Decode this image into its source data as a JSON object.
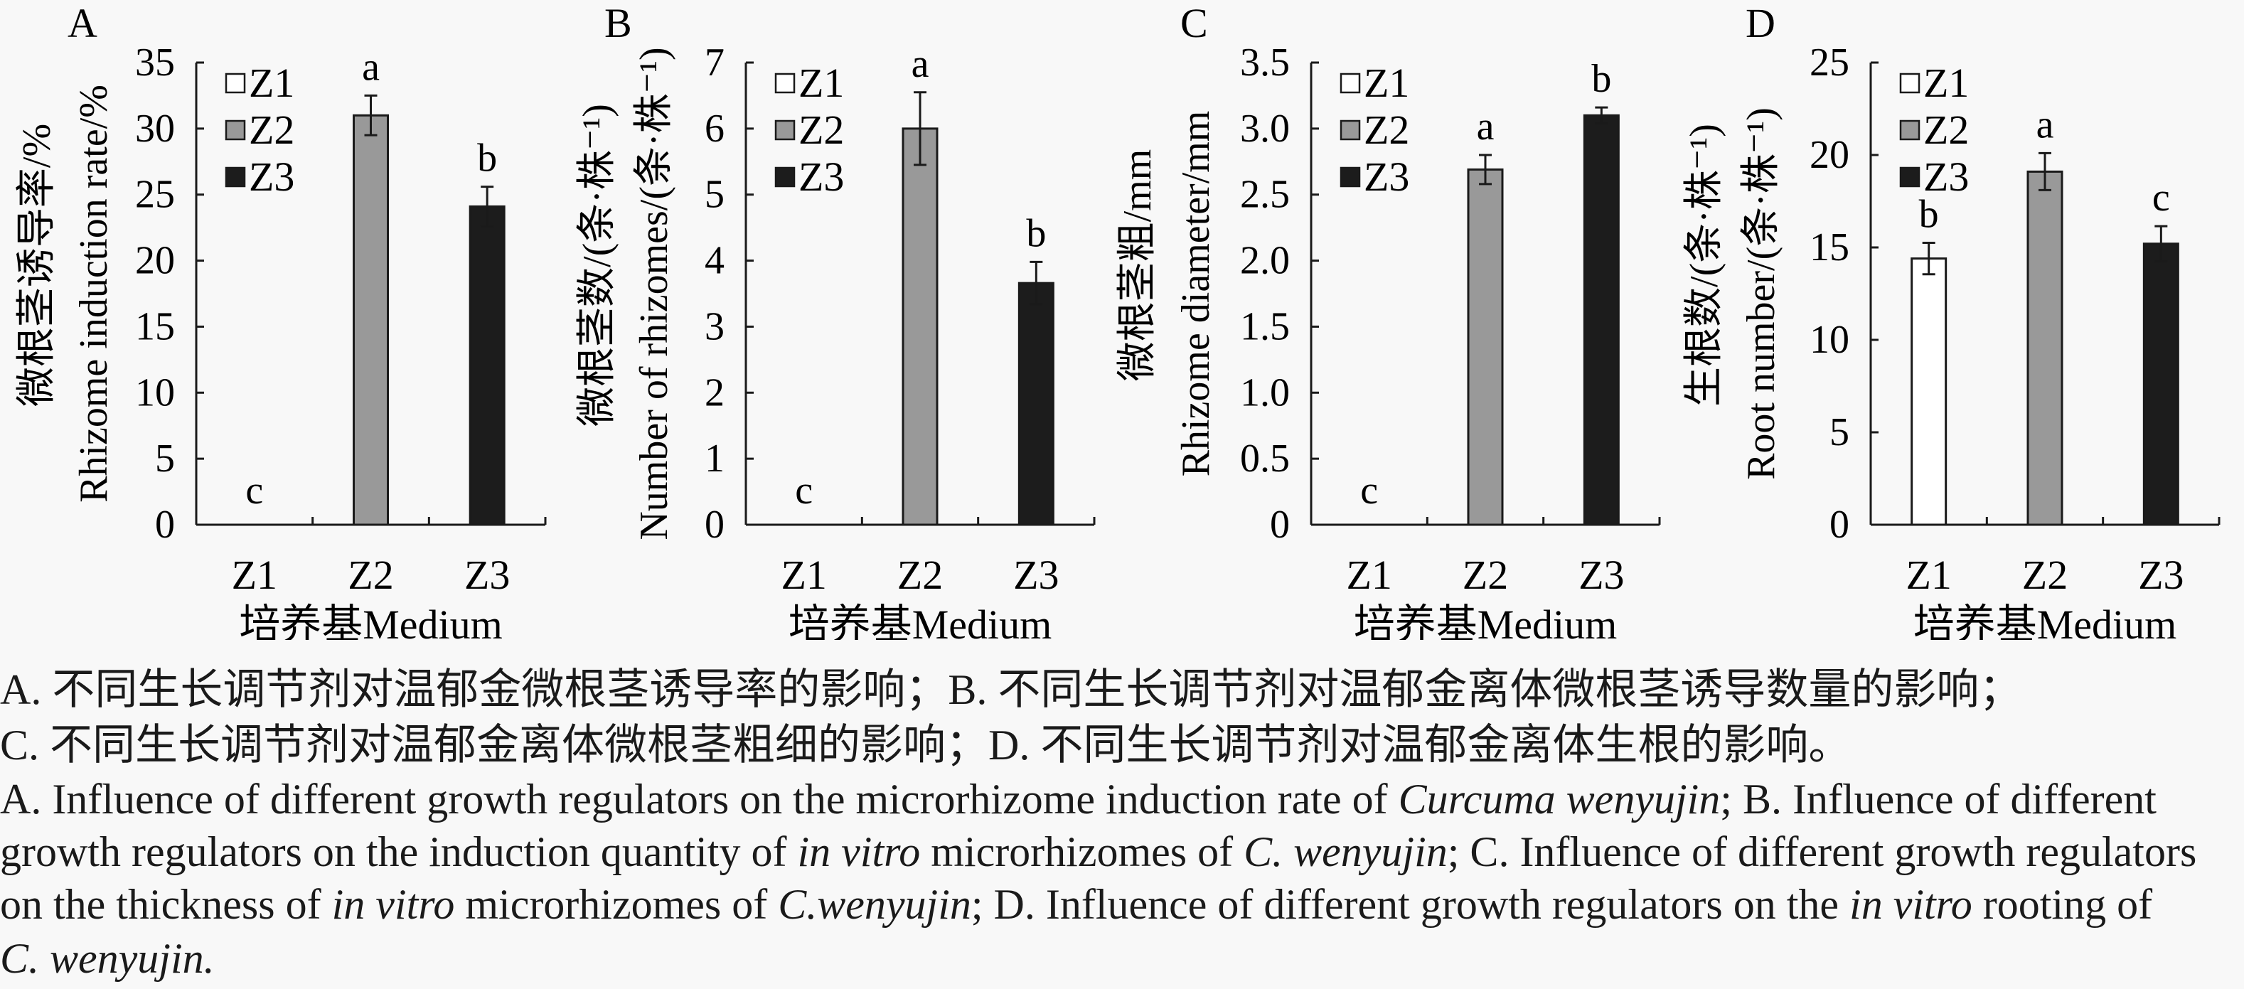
{
  "colors": {
    "background": "#f8f8f8",
    "axis": "#1a1a1a",
    "Z1": "#ffffff",
    "Z2": "#999999",
    "Z3": "#1c1c1c"
  },
  "chart_data": [
    {
      "type": "bar",
      "panel": "A",
      "title": "",
      "xlabel": "培养基Medium",
      "ylabel_cn": "微根茎诱导率/%",
      "ylabel_en": "Rhizome induction rate/%",
      "categories": [
        "Z1",
        "Z2",
        "Z3"
      ],
      "values": [
        0,
        31.0,
        24.1
      ],
      "errors": [
        0,
        1.5,
        1.5
      ],
      "significance": [
        "c",
        "a",
        "b"
      ],
      "ylim": [
        0,
        35
      ],
      "yticks": [
        "0",
        "5",
        "10",
        "15",
        "20",
        "25",
        "30",
        "35"
      ],
      "ytick_values": [
        0,
        5,
        10,
        15,
        20,
        25,
        30,
        35
      ],
      "legend": [
        "Z1",
        "Z2",
        "Z3"
      ],
      "legend_position": "top-left",
      "grid": false
    },
    {
      "type": "bar",
      "panel": "B",
      "title": "",
      "xlabel": "培养基Medium",
      "ylabel_cn": "微根茎数/(条·株⁻¹)",
      "ylabel_en": "Number of rhizomes/(条·株⁻¹)",
      "categories": [
        "Z1",
        "Z2",
        "Z3"
      ],
      "values": [
        0,
        6.0,
        3.66
      ],
      "errors": [
        0,
        0.55,
        0.32
      ],
      "significance": [
        "c",
        "a",
        "b"
      ],
      "ylim": [
        0,
        7
      ],
      "yticks": [
        "0",
        "1",
        "2",
        "3",
        "4",
        "5",
        "6",
        "7"
      ],
      "ytick_values": [
        0,
        1,
        2,
        3,
        4,
        5,
        6,
        7
      ],
      "legend": [
        "Z1",
        "Z2",
        "Z3"
      ],
      "legend_position": "top-left",
      "grid": false
    },
    {
      "type": "bar",
      "panel": "C",
      "title": "",
      "xlabel": "培养基Medium",
      "ylabel_cn": "微根茎粗/mm",
      "ylabel_en": "Rhizome diameter/mm",
      "categories": [
        "Z1",
        "Z2",
        "Z3"
      ],
      "values": [
        0,
        2.69,
        3.1
      ],
      "errors": [
        0,
        0.11,
        0.06
      ],
      "significance": [
        "c",
        "a",
        "b"
      ],
      "ylim": [
        0,
        3.5
      ],
      "yticks": [
        "0",
        "0.5",
        "1.0",
        "1.5",
        "2.0",
        "2.5",
        "3.0",
        "3.5"
      ],
      "ytick_values": [
        0,
        0.5,
        1.0,
        1.5,
        2.0,
        2.5,
        3.0,
        3.5
      ],
      "legend": [
        "Z1",
        "Z2",
        "Z3"
      ],
      "legend_position": "top-left",
      "grid": false
    },
    {
      "type": "bar",
      "panel": "D",
      "title": "",
      "xlabel": "培养基Medium",
      "ylabel_cn": "生根数/(条·株⁻¹)",
      "ylabel_en": "Root number/(条·株⁻¹)",
      "categories": [
        "Z1",
        "Z2",
        "Z3"
      ],
      "values": [
        14.4,
        19.1,
        15.2
      ],
      "errors": [
        0.85,
        1.0,
        0.95
      ],
      "significance": [
        "b",
        "a",
        "c"
      ],
      "ylim": [
        0,
        25
      ],
      "yticks": [
        "0",
        "5",
        "10",
        "15",
        "20",
        "25"
      ],
      "ytick_values": [
        0,
        5,
        10,
        15,
        20,
        25
      ],
      "legend": [
        "Z1",
        "Z2",
        "Z3"
      ],
      "legend_position": "top-left",
      "grid": false
    }
  ],
  "caption": {
    "cn_line1": "A. 不同生长调节剂对温郁金微根茎诱导率的影响；B. 不同生长调节剂对温郁金离体微根茎诱导数量的影响；",
    "cn_line2": "C. 不同生长调节剂对温郁金离体微根茎粗细的影响；D. 不同生长调节剂对温郁金离体生根的影响。",
    "en_line1": [
      {
        "text": "A. Influence of different growth regulators on the microrhizome induction rate of ",
        "italic": false
      },
      {
        "text": "Curcuma wenyujin",
        "italic": true
      },
      {
        "text": "; B. Influence of different",
        "italic": false
      }
    ],
    "en_line2": [
      {
        "text": "growth regulators on the induction quantity of ",
        "italic": false
      },
      {
        "text": "in vitro",
        "italic": true
      },
      {
        "text": " microrhizomes of ",
        "italic": false
      },
      {
        "text": "C. wenyujin",
        "italic": true
      },
      {
        "text": "; C. Influence of different growth regulators",
        "italic": false
      }
    ],
    "en_line3": [
      {
        "text": "on the thickness of ",
        "italic": false
      },
      {
        "text": "in vitro",
        "italic": true
      },
      {
        "text": " microrhizomes of ",
        "italic": false
      },
      {
        "text": "C.wenyujin",
        "italic": true
      },
      {
        "text": "; D. Influence of different growth regulators on the ",
        "italic": false
      },
      {
        "text": "in vitro",
        "italic": true
      },
      {
        "text": " rooting of",
        "italic": false
      }
    ],
    "en_line4": [
      {
        "text": "C. wenyujin.",
        "italic": true
      }
    ]
  }
}
